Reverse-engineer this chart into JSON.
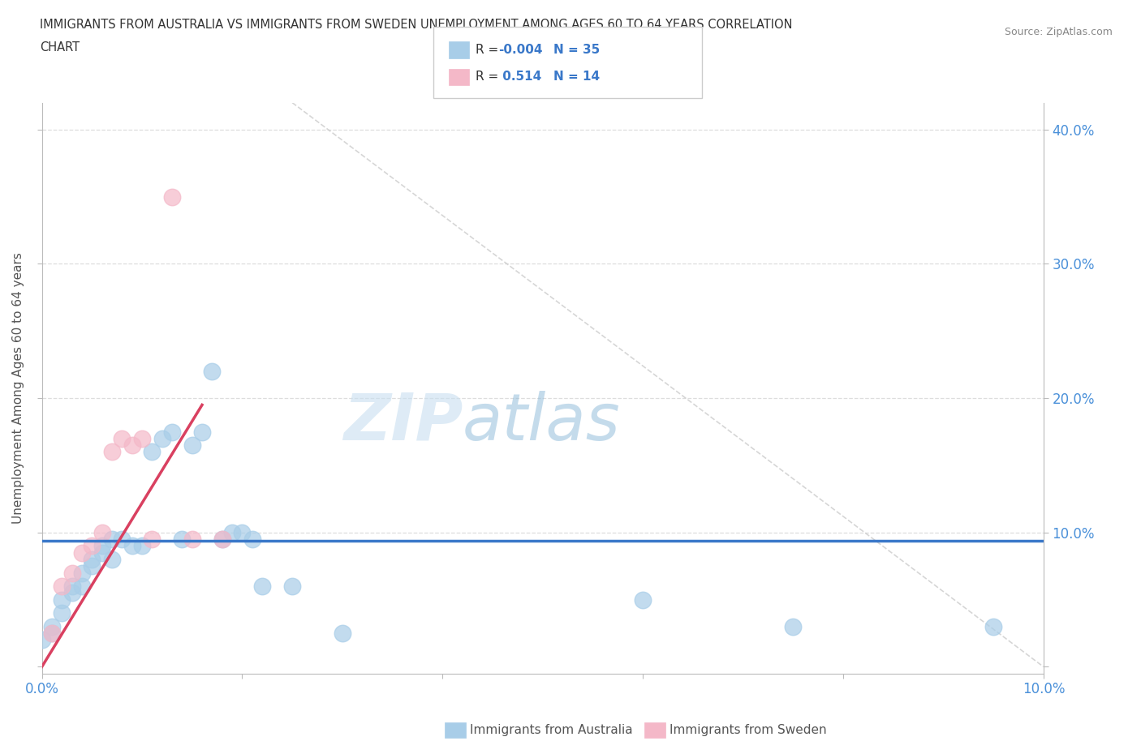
{
  "title_line1": "IMMIGRANTS FROM AUSTRALIA VS IMMIGRANTS FROM SWEDEN UNEMPLOYMENT AMONG AGES 60 TO 64 YEARS CORRELATION",
  "title_line2": "CHART",
  "source": "Source: ZipAtlas.com",
  "ylabel": "Unemployment Among Ages 60 to 64 years",
  "xlim": [
    0.0,
    0.1
  ],
  "ylim": [
    -0.005,
    0.42
  ],
  "xticks": [
    0.0,
    0.02,
    0.04,
    0.06,
    0.08,
    0.1
  ],
  "xtick_labels": [
    "0.0%",
    "",
    "",
    "",
    "",
    "10.0%"
  ],
  "yticks": [
    0.0,
    0.1,
    0.2,
    0.3,
    0.4
  ],
  "ytick_labels_left": [
    "",
    "",
    "",
    "",
    ""
  ],
  "ytick_labels_right": [
    "",
    "10.0%",
    "20.0%",
    "30.0%",
    "40.0%"
  ],
  "australia_R": "-0.004",
  "australia_N": "35",
  "sweden_R": "0.514",
  "sweden_N": "14",
  "australia_color": "#a8cde8",
  "sweden_color": "#f4b8c8",
  "australia_line_color": "#3a78c9",
  "sweden_line_color": "#d94060",
  "diag_line_color": "#cccccc",
  "watermark_zip": "ZIP",
  "watermark_atlas": "atlas",
  "australia_points": [
    [
      0.0,
      0.02
    ],
    [
      0.001,
      0.03
    ],
    [
      0.001,
      0.025
    ],
    [
      0.002,
      0.04
    ],
    [
      0.002,
      0.05
    ],
    [
      0.003,
      0.055
    ],
    [
      0.003,
      0.06
    ],
    [
      0.004,
      0.06
    ],
    [
      0.004,
      0.07
    ],
    [
      0.005,
      0.075
    ],
    [
      0.005,
      0.08
    ],
    [
      0.006,
      0.085
    ],
    [
      0.006,
      0.09
    ],
    [
      0.007,
      0.08
    ],
    [
      0.007,
      0.095
    ],
    [
      0.008,
      0.095
    ],
    [
      0.009,
      0.09
    ],
    [
      0.01,
      0.09
    ],
    [
      0.011,
      0.16
    ],
    [
      0.012,
      0.17
    ],
    [
      0.013,
      0.175
    ],
    [
      0.014,
      0.095
    ],
    [
      0.015,
      0.165
    ],
    [
      0.016,
      0.175
    ],
    [
      0.017,
      0.22
    ],
    [
      0.018,
      0.095
    ],
    [
      0.019,
      0.1
    ],
    [
      0.02,
      0.1
    ],
    [
      0.021,
      0.095
    ],
    [
      0.022,
      0.06
    ],
    [
      0.025,
      0.06
    ],
    [
      0.03,
      0.025
    ],
    [
      0.06,
      0.05
    ],
    [
      0.075,
      0.03
    ],
    [
      0.095,
      0.03
    ]
  ],
  "sweden_points": [
    [
      0.001,
      0.025
    ],
    [
      0.002,
      0.06
    ],
    [
      0.003,
      0.07
    ],
    [
      0.004,
      0.085
    ],
    [
      0.005,
      0.09
    ],
    [
      0.006,
      0.1
    ],
    [
      0.007,
      0.16
    ],
    [
      0.008,
      0.17
    ],
    [
      0.009,
      0.165
    ],
    [
      0.01,
      0.17
    ],
    [
      0.011,
      0.095
    ],
    [
      0.013,
      0.35
    ],
    [
      0.015,
      0.095
    ],
    [
      0.018,
      0.095
    ]
  ],
  "aus_flat_line_y": 0.094,
  "swe_line_x0": 0.0,
  "swe_line_x1": 0.016,
  "swe_line_y0": 0.0,
  "swe_line_y1": 0.195,
  "diag_line_x0": 0.025,
  "diag_line_y0": 0.42,
  "diag_line_x1": 0.1,
  "diag_line_y1": 0.0,
  "background_color": "#ffffff",
  "grid_color": "#dddddd",
  "tick_color": "#4a90d9",
  "label_color": "#555555"
}
